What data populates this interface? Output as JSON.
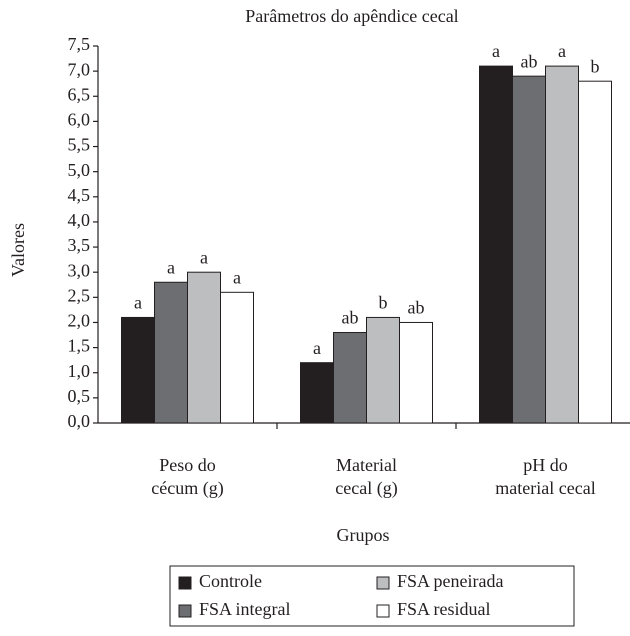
{
  "chart_data": {
    "type": "bar",
    "title": "Parâmetros do apêndice cecal",
    "x_label": "Grupos",
    "y_label": "Valores",
    "categories": [
      "Peso do\ncécum (g)",
      "Material\ncecal (g)",
      "pH do\nmaterial cecal"
    ],
    "series": [
      {
        "name": "Controle",
        "color": "#231f20",
        "values": [
          2.1,
          1.2,
          7.1
        ],
        "letters": [
          "a",
          "a",
          "a"
        ]
      },
      {
        "name": "FSA integral",
        "color": "#6d6e71",
        "values": [
          2.8,
          1.8,
          6.9
        ],
        "letters": [
          "a",
          "ab",
          "ab"
        ]
      },
      {
        "name": "FSA peneirada",
        "color": "#bcbec0",
        "values": [
          3.0,
          2.1,
          7.1
        ],
        "letters": [
          "a",
          "b",
          "a"
        ]
      },
      {
        "name": "FSA residual",
        "color": "#ffffff",
        "values": [
          2.6,
          2.0,
          6.8
        ],
        "letters": [
          "a",
          "ab",
          "b"
        ]
      }
    ],
    "ylim": [
      0,
      7.5
    ],
    "yticks": [
      {
        "value": 0,
        "label": "0,0"
      },
      {
        "value": 0.5,
        "label": "0,5"
      },
      {
        "value": 1,
        "label": "1,0"
      },
      {
        "value": 1.5,
        "label": "1,5"
      },
      {
        "value": 2,
        "label": "2,0"
      },
      {
        "value": 2.5,
        "label": "2,5"
      },
      {
        "value": 3,
        "label": "3,0"
      },
      {
        "value": 3.5,
        "label": "3,5"
      },
      {
        "value": 4,
        "label": "4,0"
      },
      {
        "value": 4.5,
        "label": "4,5"
      },
      {
        "value": 5,
        "label": "5,0"
      },
      {
        "value": 5.5,
        "label": "5,5"
      },
      {
        "value": 6,
        "label": "6,0"
      },
      {
        "value": 6.5,
        "label": "6,5"
      },
      {
        "value": 7,
        "label": "7,0"
      },
      {
        "value": 7.5,
        "label": "7,5"
      }
    ],
    "legend": "bottom"
  }
}
